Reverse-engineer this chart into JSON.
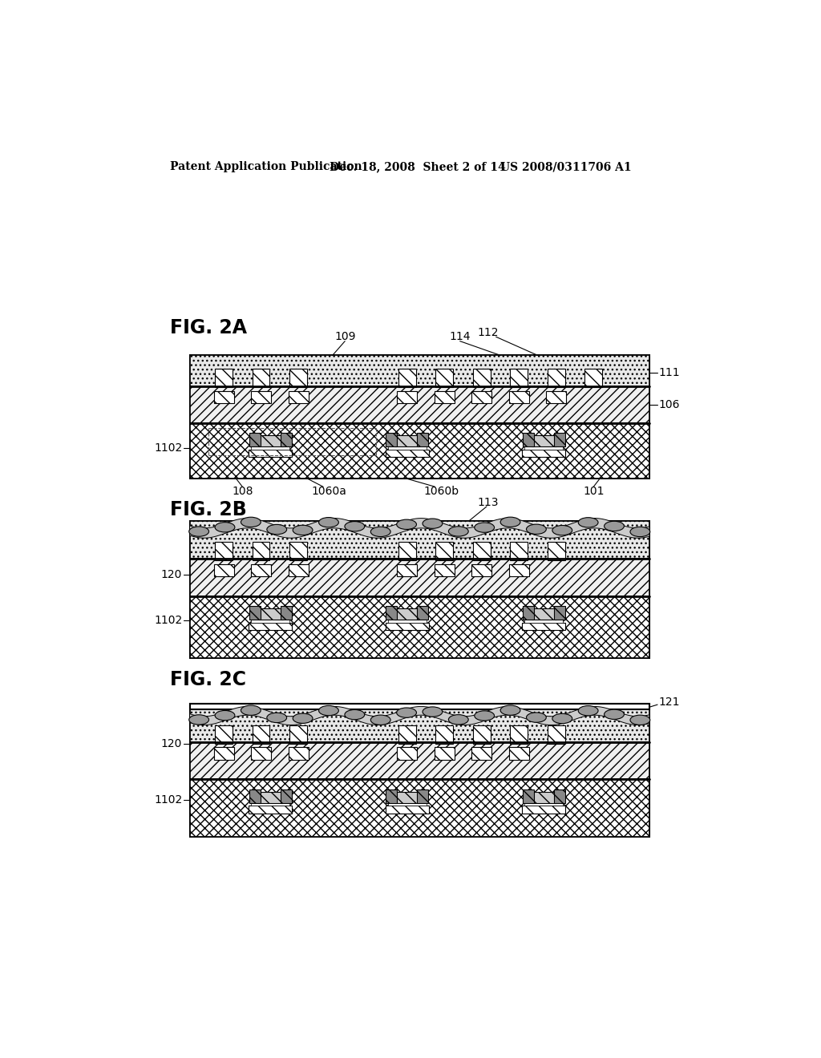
{
  "header_left": "Patent Application Publication",
  "header_mid": "Dec. 18, 2008  Sheet 2 of 14",
  "header_right": "US 2008/0311706 A1",
  "background": "#ffffff"
}
